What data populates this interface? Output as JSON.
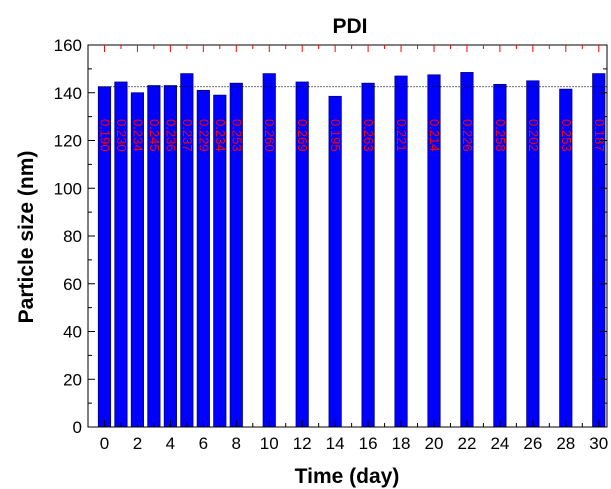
{
  "chart_data": {
    "type": "bar",
    "title": "PDI",
    "xlabel": "Time (day)",
    "ylabel": "Particle size (nm)",
    "x": [
      0,
      1,
      2,
      3,
      4,
      5,
      6,
      7,
      8,
      10,
      12,
      14,
      16,
      18,
      20,
      22,
      24,
      26,
      28,
      30
    ],
    "values": [
      142.5,
      144.5,
      140,
      143,
      143,
      148,
      141,
      139,
      144,
      148,
      144.5,
      138.5,
      144,
      147,
      147.5,
      148.5,
      143.5,
      145,
      141.5,
      148
    ],
    "bar_labels": [
      "0.190",
      "0.230",
      "0.234",
      "0.245",
      "0.236",
      "0.237",
      "0.229",
      "0.234",
      "0.253",
      "0.260",
      "0.269",
      "0.195",
      "0.263",
      "0.221",
      "0.214",
      "0.226",
      "0.258",
      "0.202",
      "0.253",
      "0.187"
    ],
    "reference_line": 142.5,
    "xlim": [
      -1,
      30.5
    ],
    "ylim": [
      0,
      160
    ],
    "x_ticks": [
      0,
      2,
      4,
      6,
      8,
      10,
      12,
      14,
      16,
      18,
      20,
      22,
      24,
      26,
      28,
      30
    ],
    "y_ticks": [
      0,
      20,
      40,
      60,
      80,
      100,
      120,
      140,
      160
    ],
    "bar_width_days": 0.75,
    "grid": false,
    "colors": {
      "bar_fill": "#0000ff",
      "bar_stroke": "#000080",
      "bar_label": "#ff0000",
      "top_ticks": "#ff0000",
      "reference_line": "#000000"
    }
  }
}
